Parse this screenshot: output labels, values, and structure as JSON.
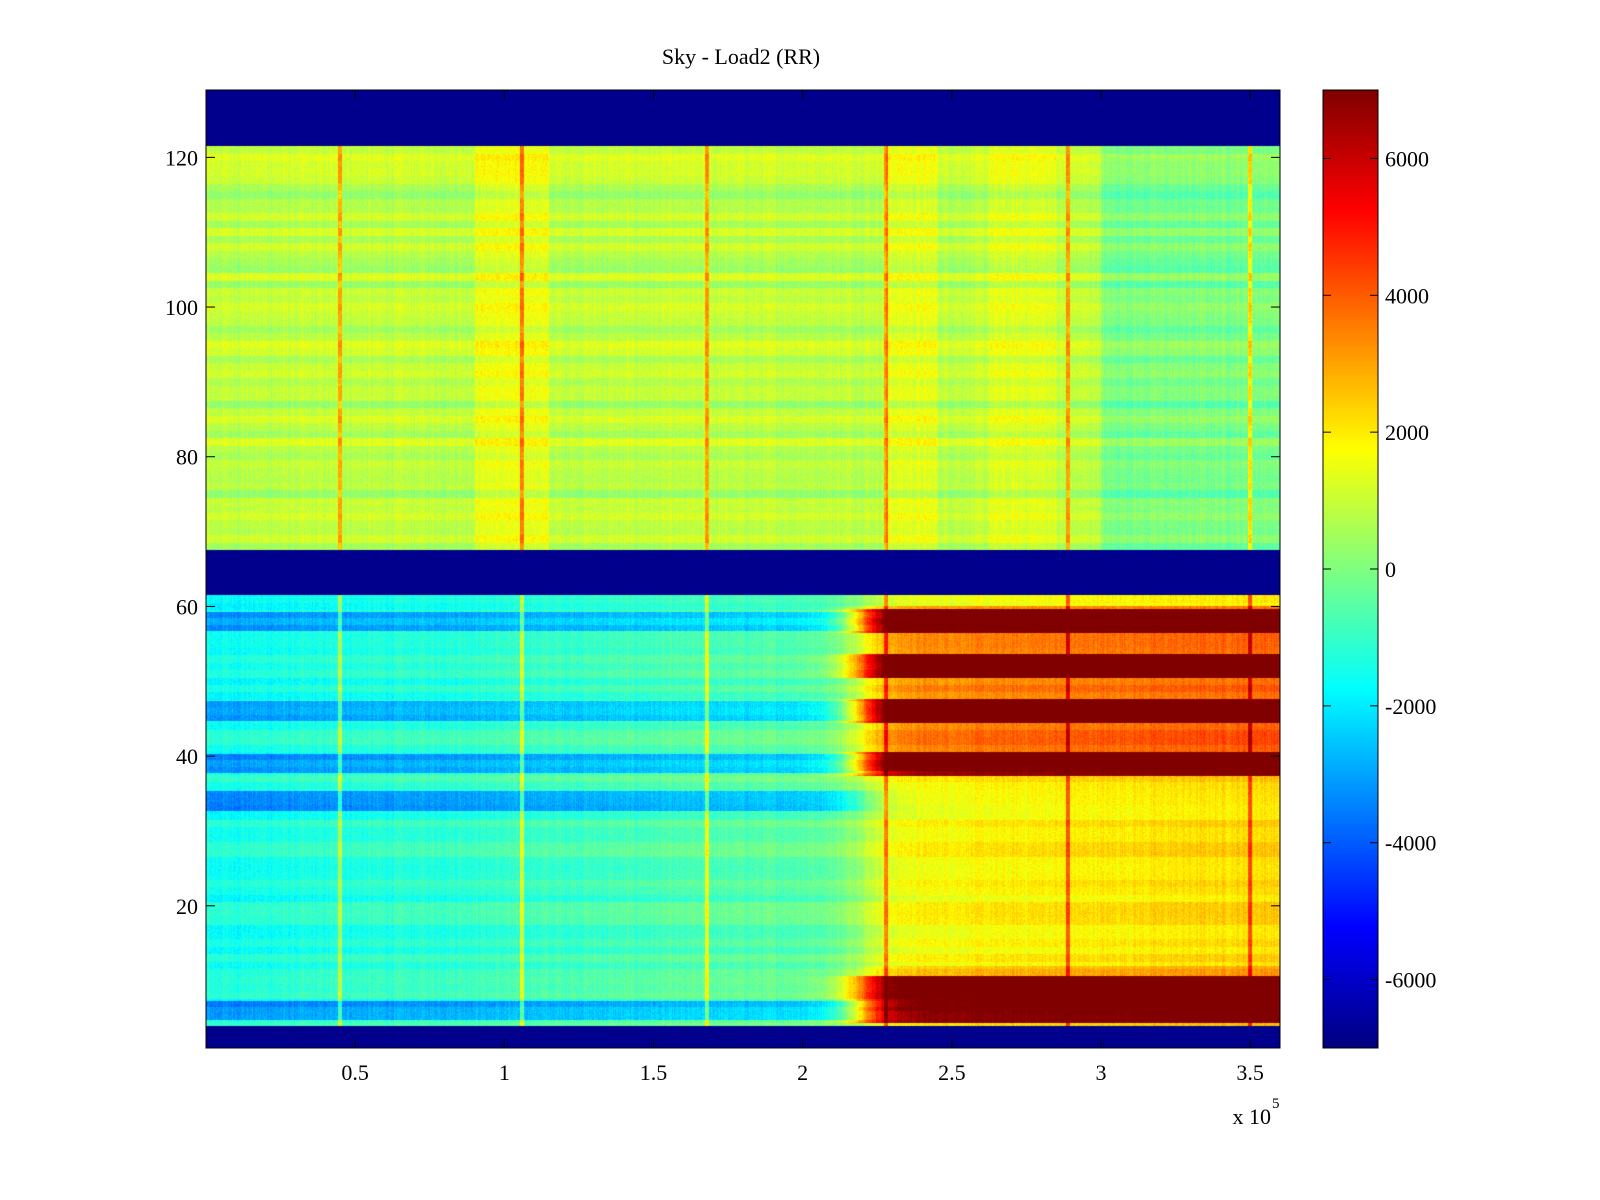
{
  "chart_data": {
    "type": "heatmap",
    "title": "Sky - Load2 (RR)",
    "xlabel": "",
    "ylabel": "",
    "x_exponent_label": "x 10",
    "x_exponent_power": "5",
    "xlim": [
      0,
      3.6
    ],
    "ylim": [
      1,
      129
    ],
    "x_ticks": [
      0.5,
      1,
      1.5,
      2,
      2.5,
      3,
      3.5
    ],
    "x_tick_labels": [
      "0.5",
      "1",
      "1.5",
      "2",
      "2.5",
      "3",
      "3.5"
    ],
    "y_ticks": [
      20,
      40,
      60,
      80,
      100,
      120
    ],
    "y_tick_labels": [
      "20",
      "40",
      "60",
      "80",
      "100",
      "120"
    ],
    "colorbar": {
      "limits": [
        -7000,
        7000
      ],
      "ticks": [
        -6000,
        -4000,
        -2000,
        0,
        2000,
        4000,
        6000
      ],
      "tick_labels": [
        "-6000",
        "-4000",
        "-2000",
        "0",
        "2000",
        "4000",
        "6000"
      ],
      "colormap": "jet"
    },
    "masked_channel_ranges": [
      [
        1,
        4
      ],
      [
        61.5,
        67.5
      ],
      [
        121.5,
        129
      ]
    ],
    "spike_times": [
      0.45,
      1.06,
      1.68,
      2.28,
      2.89,
      3.5
    ],
    "values_summary": {
      "upper_band_channels_68_121_typical": 800,
      "lower_band_channels_4_61_before_2.2e5_typical": -1500,
      "lower_band_channels_after_2.25e5_strong_rows_peak": 6500,
      "strong_channel_rows": [
        6,
        9,
        39,
        46,
        52,
        58
      ],
      "cold_channel_rows": [
        6,
        34,
        39,
        46,
        58
      ]
    },
    "grid": false
  },
  "colors": {
    "mask": "#00008c",
    "axes": "#000000",
    "background": "#ffffff"
  }
}
